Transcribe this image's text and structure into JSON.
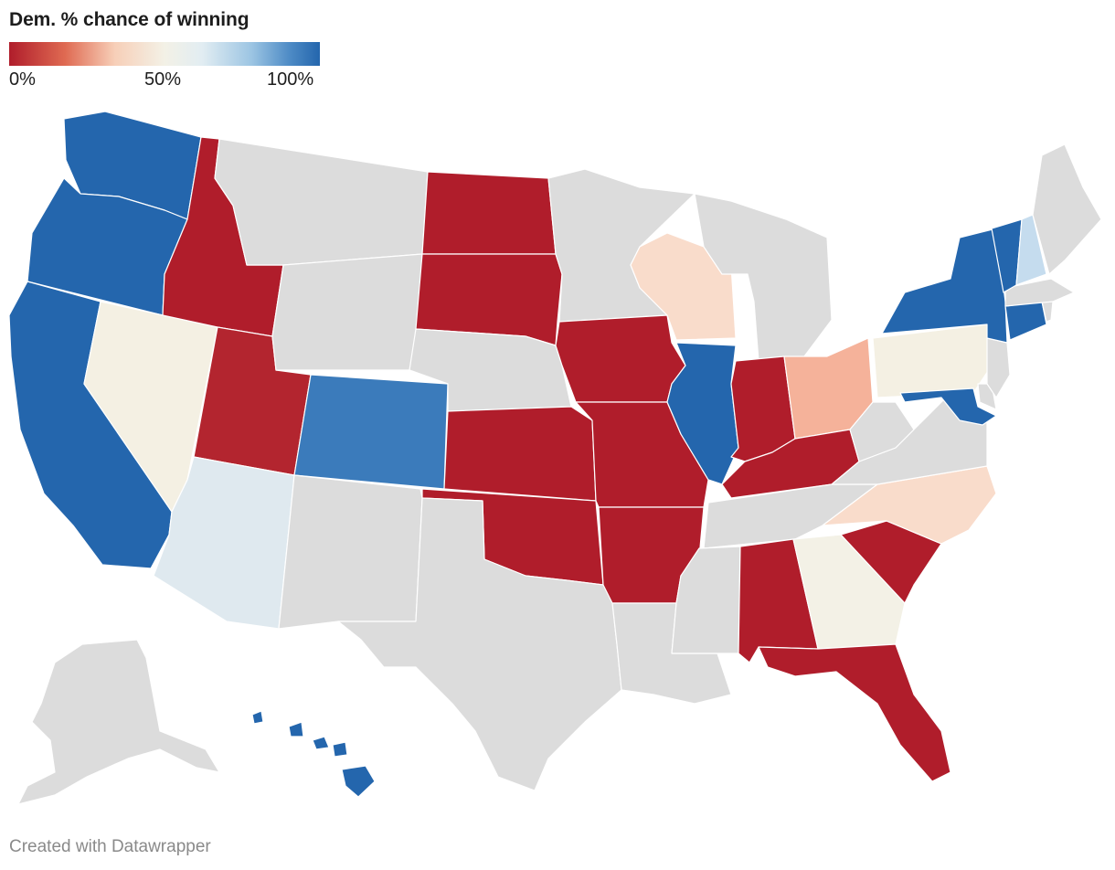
{
  "title": "Dem. % chance of winning",
  "legend": {
    "min_label": "0%",
    "mid_label": "50%",
    "max_label": "100%"
  },
  "credit": "Created with Datawrapper",
  "colors": {
    "safe_rep": "#b01d2b",
    "likely_rep": "#b3252f",
    "lean_rep": "#f5b29a",
    "tilt_rep": "#f9dccb",
    "tossup_rep": "#f3f1e6",
    "tossup": "#f4f0e3",
    "tilt_dem": "#dfe9ef",
    "lean_dem": "#c5dcee",
    "likely_dem": "#3b7bbb",
    "safe_dem": "#2466ad",
    "no_data": "#dcdcdc"
  },
  "states": {
    "WA": "safe_dem",
    "OR": "safe_dem",
    "CA": "safe_dem",
    "HI": "safe_dem",
    "NV": "tossup",
    "AZ": "tilt_dem",
    "CO": "likely_dem",
    "UT": "likely_rep",
    "ID": "safe_rep",
    "ND": "safe_rep",
    "SD": "safe_rep",
    "KS": "safe_rep",
    "OK": "safe_rep",
    "IA": "safe_rep",
    "MO": "safe_rep",
    "AR": "safe_rep",
    "IL": "safe_dem",
    "IN": "safe_rep",
    "KY": "safe_rep",
    "AL": "safe_rep",
    "SC": "safe_rep",
    "FL": "safe_rep",
    "WI": "tilt_rep",
    "OH": "lean_rep",
    "NC": "tilt_rep",
    "GA": "tossup_rep",
    "PA": "tossup",
    "NY": "safe_dem",
    "VT": "safe_dem",
    "NH": "lean_dem",
    "CT": "safe_dem",
    "MD": "safe_dem",
    "MT": "no_data",
    "WY": "no_data",
    "NE": "no_data",
    "NM": "no_data",
    "TX": "no_data",
    "MN": "no_data",
    "LA": "no_data",
    "MS": "no_data",
    "TN": "no_data",
    "MI": "no_data",
    "WV": "no_data",
    "VA": "no_data",
    "NJ": "no_data",
    "DE": "no_data",
    "MA": "no_data",
    "RI": "no_data",
    "ME": "no_data",
    "AK": "no_data"
  }
}
